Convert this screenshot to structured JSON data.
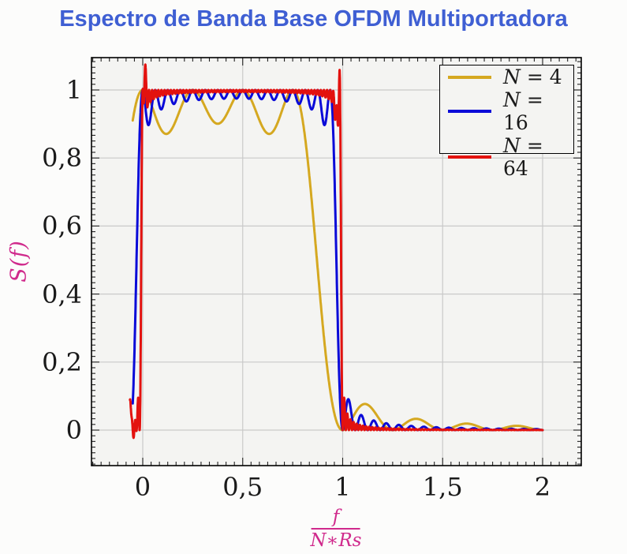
{
  "title": {
    "text": "Espectro de Banda Base OFDM Multiportadora",
    "color": "#3f5fd3"
  },
  "axes": {
    "y_label": {
      "text": "S(f)",
      "color": "#d02a8c"
    },
    "x_label": {
      "numerator": "f",
      "denominator": "N∗Rs",
      "color": "#d02a8c"
    },
    "x_ticks": [
      {
        "value": 0,
        "label": "0"
      },
      {
        "value": 0.5,
        "label": "0,5"
      },
      {
        "value": 1,
        "label": "1"
      },
      {
        "value": 1.5,
        "label": "1,5"
      },
      {
        "value": 2,
        "label": "2"
      }
    ],
    "y_ticks": [
      {
        "value": 0,
        "label": "0"
      },
      {
        "value": 0.2,
        "label": "0,2"
      },
      {
        "value": 0.4,
        "label": "0,4"
      },
      {
        "value": 0.6,
        "label": "0,6"
      },
      {
        "value": 0.8,
        "label": "0,8"
      },
      {
        "value": 1,
        "label": "1"
      }
    ]
  },
  "legend": {
    "entries": [
      {
        "label": "N = 4",
        "color": "#d5a820"
      },
      {
        "label": "N = 16",
        "color": "#0a0ad8"
      },
      {
        "label": "N = 64",
        "color": "#e3120f"
      }
    ]
  },
  "chart_data": {
    "type": "line",
    "title": "Espectro de Banda Base OFDM Multiportadora",
    "xlabel": "f/(N*Rs)",
    "ylabel": "S(f)",
    "xlim": [
      -0.2564,
      2.1933
    ],
    "ylim": [
      -0.1044,
      1.0951
    ],
    "x_major_ticks": [
      0,
      0.5,
      1,
      1.5,
      2
    ],
    "y_major_ticks": [
      0,
      0.2,
      0.4,
      0.6,
      0.8,
      1
    ],
    "minor_divisions_per_major": 12,
    "grid": "major",
    "plot_bg": "#f4f4f2",
    "grid_color": "#c9c9c9",
    "tick_color": "#222222",
    "model": "S(x) = sum_{k=0}^{N-1} sinc^2(N*x - k); passband 0<=x<=1, flat top at 1.0, sinc^2 sidelobes for x>1",
    "series": [
      {
        "name": "N = 4",
        "N": 4,
        "color": "#d5a820",
        "width": 3,
        "x_start": -0.05,
        "x_end": 2.0,
        "samples": 1600,
        "passband": [
          0,
          1
        ],
        "peak": 1.0,
        "ripple_min": 0.87,
        "first_sidelobe": {
          "x": 1.12,
          "y": 0.074
        }
      },
      {
        "name": "N = 16",
        "N": 16,
        "color": "#0a0ad8",
        "width": 3,
        "x_start": -0.05,
        "x_end": 2.0,
        "samples": 2800,
        "passband": [
          0,
          1
        ],
        "peak": 1.0,
        "ripple_min": 0.9,
        "first_sidelobe": {
          "x": 1.03,
          "y": 0.078
        }
      },
      {
        "name": "N = 64",
        "N": 64,
        "color": "#e3120f",
        "width": 3,
        "x_start": -0.064,
        "x_end": 2.0,
        "samples": 4400,
        "passband": [
          0,
          1
        ],
        "peak": 1.05,
        "ripple_min": 0.95,
        "first_sidelobe": {
          "x": 1.008,
          "y": 0.06
        },
        "edge_ringing": [
          {
            "c": -0.063,
            "w": 0.005,
            "a": 0.09
          },
          {
            "c": -0.043,
            "w": 0.0075,
            "a": -0.028
          },
          {
            "c": 0.0105,
            "w": 0.0055,
            "a": 0.115
          },
          {
            "c": 0.985,
            "w": 0.0045,
            "a": 0.06
          },
          {
            "c": 0.9665,
            "w": 0.008,
            "a": -0.05
          }
        ]
      }
    ]
  }
}
